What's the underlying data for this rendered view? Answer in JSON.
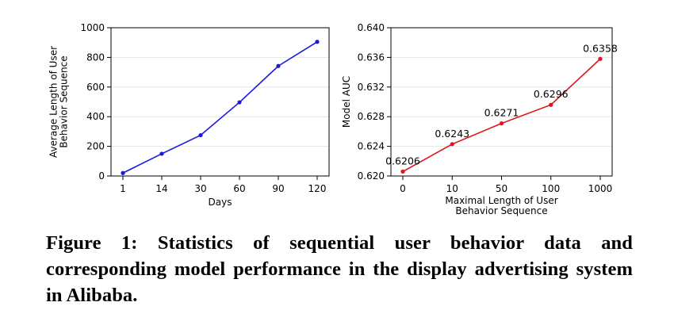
{
  "chart_data": [
    {
      "type": "line",
      "x": [
        "1",
        "14",
        "30",
        "60",
        "90",
        "120"
      ],
      "values": [
        20,
        150,
        275,
        497,
        742,
        905
      ],
      "xlabel": "Days",
      "ylabel": [
        "Average Length of User",
        "Behavior Sequence"
      ],
      "ylim": [
        0,
        1000
      ],
      "yticks": [
        "0",
        "200",
        "400",
        "600",
        "800",
        "1000"
      ],
      "color": "#1a1adc",
      "grid": true,
      "data_labels": []
    },
    {
      "type": "line",
      "x": [
        "0",
        "10",
        "50",
        "100",
        "1000"
      ],
      "values": [
        0.6206,
        0.6243,
        0.6271,
        0.6296,
        0.6358
      ],
      "xlabel": [
        "Maximal Length of User",
        "Behavior Sequence"
      ],
      "ylabel": "Model AUC",
      "ylim": [
        0.62,
        0.64
      ],
      "yticks": [
        "0.620",
        "0.624",
        "0.628",
        "0.632",
        "0.636",
        "0.640"
      ],
      "color": "#e0141e",
      "grid": true,
      "data_labels": [
        "0.6206",
        "0.6243",
        "0.6271",
        "0.6296",
        "0.6358"
      ]
    }
  ],
  "caption": "Figure 1: Statistics of sequential user behavior data and corresponding model performance in the display advertising system in Alibaba."
}
